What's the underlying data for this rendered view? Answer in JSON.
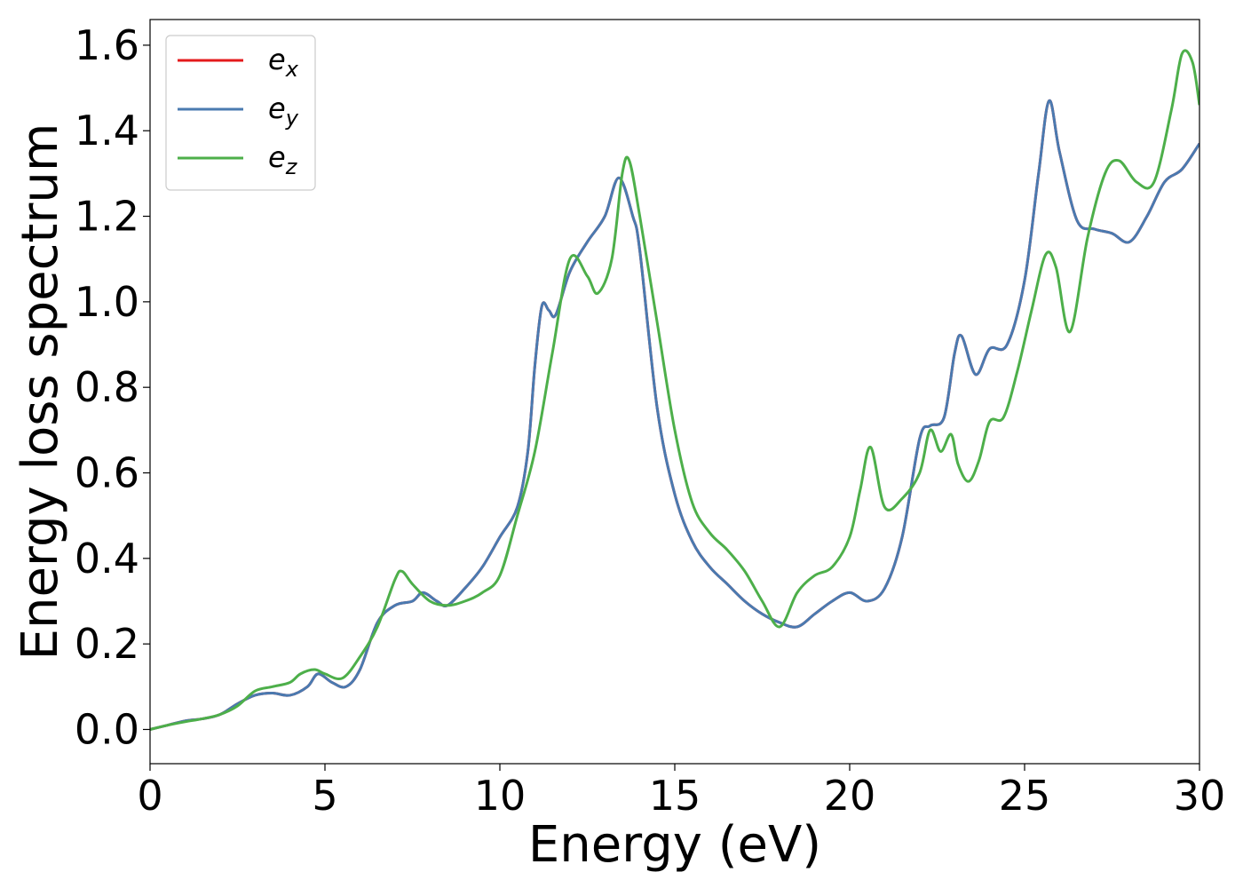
{
  "chart_data": {
    "type": "line",
    "xlabel": "Energy (eV)",
    "ylabel": "Energy loss spectrum",
    "xlim": [
      0,
      30
    ],
    "ylim": [
      -0.08,
      1.66
    ],
    "xticks": [
      0,
      5,
      10,
      15,
      20,
      25,
      30
    ],
    "yticks": [
      0.0,
      0.2,
      0.4,
      0.6,
      0.8,
      1.0,
      1.2,
      1.4,
      1.6
    ],
    "xtick_labels": [
      "0",
      "5",
      "10",
      "15",
      "20",
      "25",
      "30"
    ],
    "ytick_labels": [
      "0.0",
      "0.2",
      "0.4",
      "0.6",
      "0.8",
      "1.0",
      "1.2",
      "1.4",
      "1.6"
    ],
    "grid": false,
    "legend_position": "top-left",
    "series": [
      {
        "name": "e_x",
        "label_base": "e",
        "label_sub": "x",
        "color": "#e41a1c",
        "x": [
          0,
          0.5,
          1,
          1.5,
          2,
          2.5,
          3,
          3.5,
          4,
          4.5,
          4.8,
          5.2,
          5.6,
          6,
          6.5,
          7,
          7.5,
          7.8,
          8.2,
          8.5,
          9,
          9.5,
          10,
          10.5,
          10.8,
          11,
          11.2,
          11.4,
          11.6,
          12,
          12.5,
          13,
          13.4,
          13.8,
          14,
          14.5,
          15,
          15.5,
          16,
          16.5,
          17,
          17.5,
          18,
          18.5,
          19,
          19.5,
          20,
          20.5,
          21,
          21.5,
          22,
          22.3,
          22.7,
          23,
          23.2,
          23.6,
          24,
          24.5,
          25,
          25.4,
          25.7,
          26,
          26.5,
          27,
          27.5,
          28,
          28.5,
          29,
          29.5,
          30
        ],
        "y": [
          0,
          0.01,
          0.02,
          0.025,
          0.035,
          0.06,
          0.08,
          0.085,
          0.08,
          0.1,
          0.13,
          0.11,
          0.1,
          0.14,
          0.25,
          0.29,
          0.3,
          0.32,
          0.3,
          0.29,
          0.33,
          0.38,
          0.45,
          0.52,
          0.65,
          0.85,
          0.99,
          0.98,
          0.97,
          1.07,
          1.14,
          1.2,
          1.29,
          1.2,
          1.12,
          0.75,
          0.55,
          0.44,
          0.38,
          0.34,
          0.3,
          0.27,
          0.25,
          0.24,
          0.27,
          0.3,
          0.32,
          0.3,
          0.33,
          0.45,
          0.68,
          0.71,
          0.73,
          0.88,
          0.92,
          0.83,
          0.89,
          0.9,
          1.05,
          1.3,
          1.47,
          1.35,
          1.19,
          1.17,
          1.16,
          1.14,
          1.2,
          1.28,
          1.31,
          1.37
        ]
      },
      {
        "name": "e_y",
        "label_base": "e",
        "label_sub": "y",
        "color": "#4a7ab0",
        "x": [
          0,
          0.5,
          1,
          1.5,
          2,
          2.5,
          3,
          3.5,
          4,
          4.5,
          4.8,
          5.2,
          5.6,
          6,
          6.5,
          7,
          7.5,
          7.8,
          8.2,
          8.5,
          9,
          9.5,
          10,
          10.5,
          10.8,
          11,
          11.2,
          11.4,
          11.6,
          12,
          12.5,
          13,
          13.4,
          13.8,
          14,
          14.5,
          15,
          15.5,
          16,
          16.5,
          17,
          17.5,
          18,
          18.5,
          19,
          19.5,
          20,
          20.5,
          21,
          21.5,
          22,
          22.3,
          22.7,
          23,
          23.2,
          23.6,
          24,
          24.5,
          25,
          25.4,
          25.7,
          26,
          26.5,
          27,
          27.5,
          28,
          28.5,
          29,
          29.5,
          30
        ],
        "y": [
          0,
          0.01,
          0.02,
          0.025,
          0.035,
          0.06,
          0.08,
          0.085,
          0.08,
          0.1,
          0.13,
          0.11,
          0.1,
          0.14,
          0.25,
          0.29,
          0.3,
          0.32,
          0.3,
          0.29,
          0.33,
          0.38,
          0.45,
          0.52,
          0.65,
          0.85,
          0.99,
          0.98,
          0.97,
          1.07,
          1.14,
          1.2,
          1.29,
          1.2,
          1.12,
          0.75,
          0.55,
          0.44,
          0.38,
          0.34,
          0.3,
          0.27,
          0.25,
          0.24,
          0.27,
          0.3,
          0.32,
          0.3,
          0.33,
          0.45,
          0.68,
          0.71,
          0.73,
          0.88,
          0.92,
          0.83,
          0.89,
          0.9,
          1.05,
          1.3,
          1.47,
          1.35,
          1.19,
          1.17,
          1.16,
          1.14,
          1.2,
          1.28,
          1.31,
          1.37
        ]
      },
      {
        "name": "e_z",
        "label_base": "e",
        "label_sub": "z",
        "color": "#4daf4a",
        "x": [
          0,
          0.5,
          1,
          1.5,
          2,
          2.5,
          3,
          3.5,
          4,
          4.3,
          4.7,
          5,
          5.5,
          6,
          6.5,
          7,
          7.2,
          7.5,
          8,
          8.5,
          9,
          9.5,
          10,
          10.5,
          11,
          11.5,
          12,
          12.5,
          12.8,
          13.2,
          13.5,
          13.7,
          14,
          14.5,
          15,
          15.5,
          16,
          16.5,
          17,
          17.5,
          18,
          18.5,
          19,
          19.5,
          20,
          20.3,
          20.6,
          21,
          21.5,
          22,
          22.3,
          22.6,
          22.9,
          23.1,
          23.4,
          23.7,
          24,
          24.4,
          24.8,
          25.2,
          25.6,
          25.9,
          26.3,
          26.8,
          27.3,
          27.7,
          28.2,
          28.7,
          29.2,
          29.5,
          29.8,
          30
        ],
        "y": [
          0,
          0.01,
          0.018,
          0.025,
          0.035,
          0.055,
          0.09,
          0.1,
          0.11,
          0.13,
          0.14,
          0.13,
          0.12,
          0.17,
          0.24,
          0.35,
          0.37,
          0.34,
          0.3,
          0.29,
          0.3,
          0.32,
          0.36,
          0.5,
          0.65,
          0.88,
          1.1,
          1.06,
          1.02,
          1.1,
          1.3,
          1.33,
          1.2,
          0.95,
          0.7,
          0.53,
          0.46,
          0.42,
          0.37,
          0.3,
          0.24,
          0.32,
          0.36,
          0.38,
          0.45,
          0.56,
          0.66,
          0.52,
          0.54,
          0.6,
          0.7,
          0.65,
          0.69,
          0.62,
          0.58,
          0.63,
          0.72,
          0.73,
          0.84,
          0.98,
          1.11,
          1.08,
          0.93,
          1.15,
          1.3,
          1.33,
          1.28,
          1.28,
          1.45,
          1.58,
          1.56,
          1.46
        ]
      }
    ]
  }
}
